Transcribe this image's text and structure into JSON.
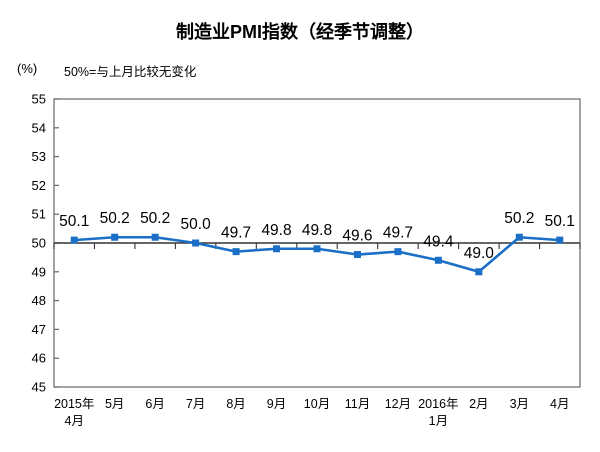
{
  "chart_data": {
    "type": "line",
    "title": "制造业PMI指数（经季节调整）",
    "unit_label": "(%)",
    "note": "50%=与上月比较无变化",
    "series_name": "制造业PMI指数",
    "categories": [
      [
        "2015年",
        "4月"
      ],
      [
        "5月"
      ],
      [
        "6月"
      ],
      [
        "7月"
      ],
      [
        "8月"
      ],
      [
        "9月"
      ],
      [
        "10月"
      ],
      [
        "11月"
      ],
      [
        "12月"
      ],
      [
        "2016年",
        "1月"
      ],
      [
        "2月"
      ],
      [
        "3月"
      ],
      [
        "4月"
      ]
    ],
    "values": [
      50.1,
      50.2,
      50.2,
      50.0,
      49.7,
      49.8,
      49.8,
      49.6,
      49.7,
      49.4,
      49.0,
      50.2,
      50.1
    ],
    "ylim": [
      45,
      55
    ],
    "ytick_step": 1,
    "reference_line": 50,
    "grid": false,
    "legend": "none",
    "data_labels": true,
    "line_color": "#1B6FC6",
    "marker": "square",
    "axis_color": "#666666",
    "ref_line_color": "#333333",
    "text_color": "#000000"
  }
}
